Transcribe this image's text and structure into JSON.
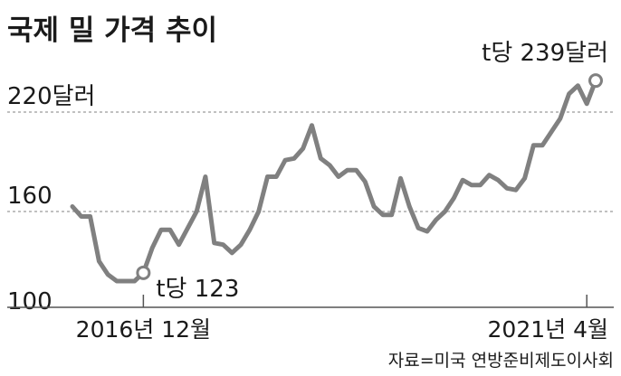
{
  "chart_data": {
    "type": "line",
    "title": "국제 밀 가격 추이",
    "ylim": [
      100,
      239
    ],
    "y_ticks": [
      {
        "value": 220,
        "label": "220달러"
      },
      {
        "value": 160,
        "label": "160"
      },
      {
        "value": 100,
        "label": "100"
      }
    ],
    "x_ticks": [
      {
        "index": 8,
        "label": "2016년 12월"
      },
      {
        "index": 58,
        "label": "2021년 4월"
      }
    ],
    "grid": true,
    "colors": {
      "line": "#808080",
      "marker_fill": "#ffffff",
      "text": "#1a1a1a"
    },
    "series": [
      {
        "values": [
          163,
          157,
          157,
          130,
          122,
          118,
          118,
          118,
          123,
          138,
          149,
          149,
          140,
          150,
          160,
          181,
          141,
          140,
          135,
          140,
          149,
          160,
          181,
          181,
          191,
          192,
          198,
          212,
          192,
          188,
          181,
          185,
          185,
          178,
          163,
          158,
          158,
          180,
          163,
          150,
          148,
          155,
          160,
          168,
          179,
          176,
          176,
          182,
          179,
          174,
          173,
          180,
          200,
          200,
          208,
          216,
          231,
          236,
          225,
          239
        ],
        "annotations": [
          {
            "index": 8,
            "label": "t당 123"
          },
          {
            "index": 59,
            "label": "t당 239달러"
          }
        ]
      }
    ],
    "source": "자료=미국 연방준비제도이사회"
  }
}
